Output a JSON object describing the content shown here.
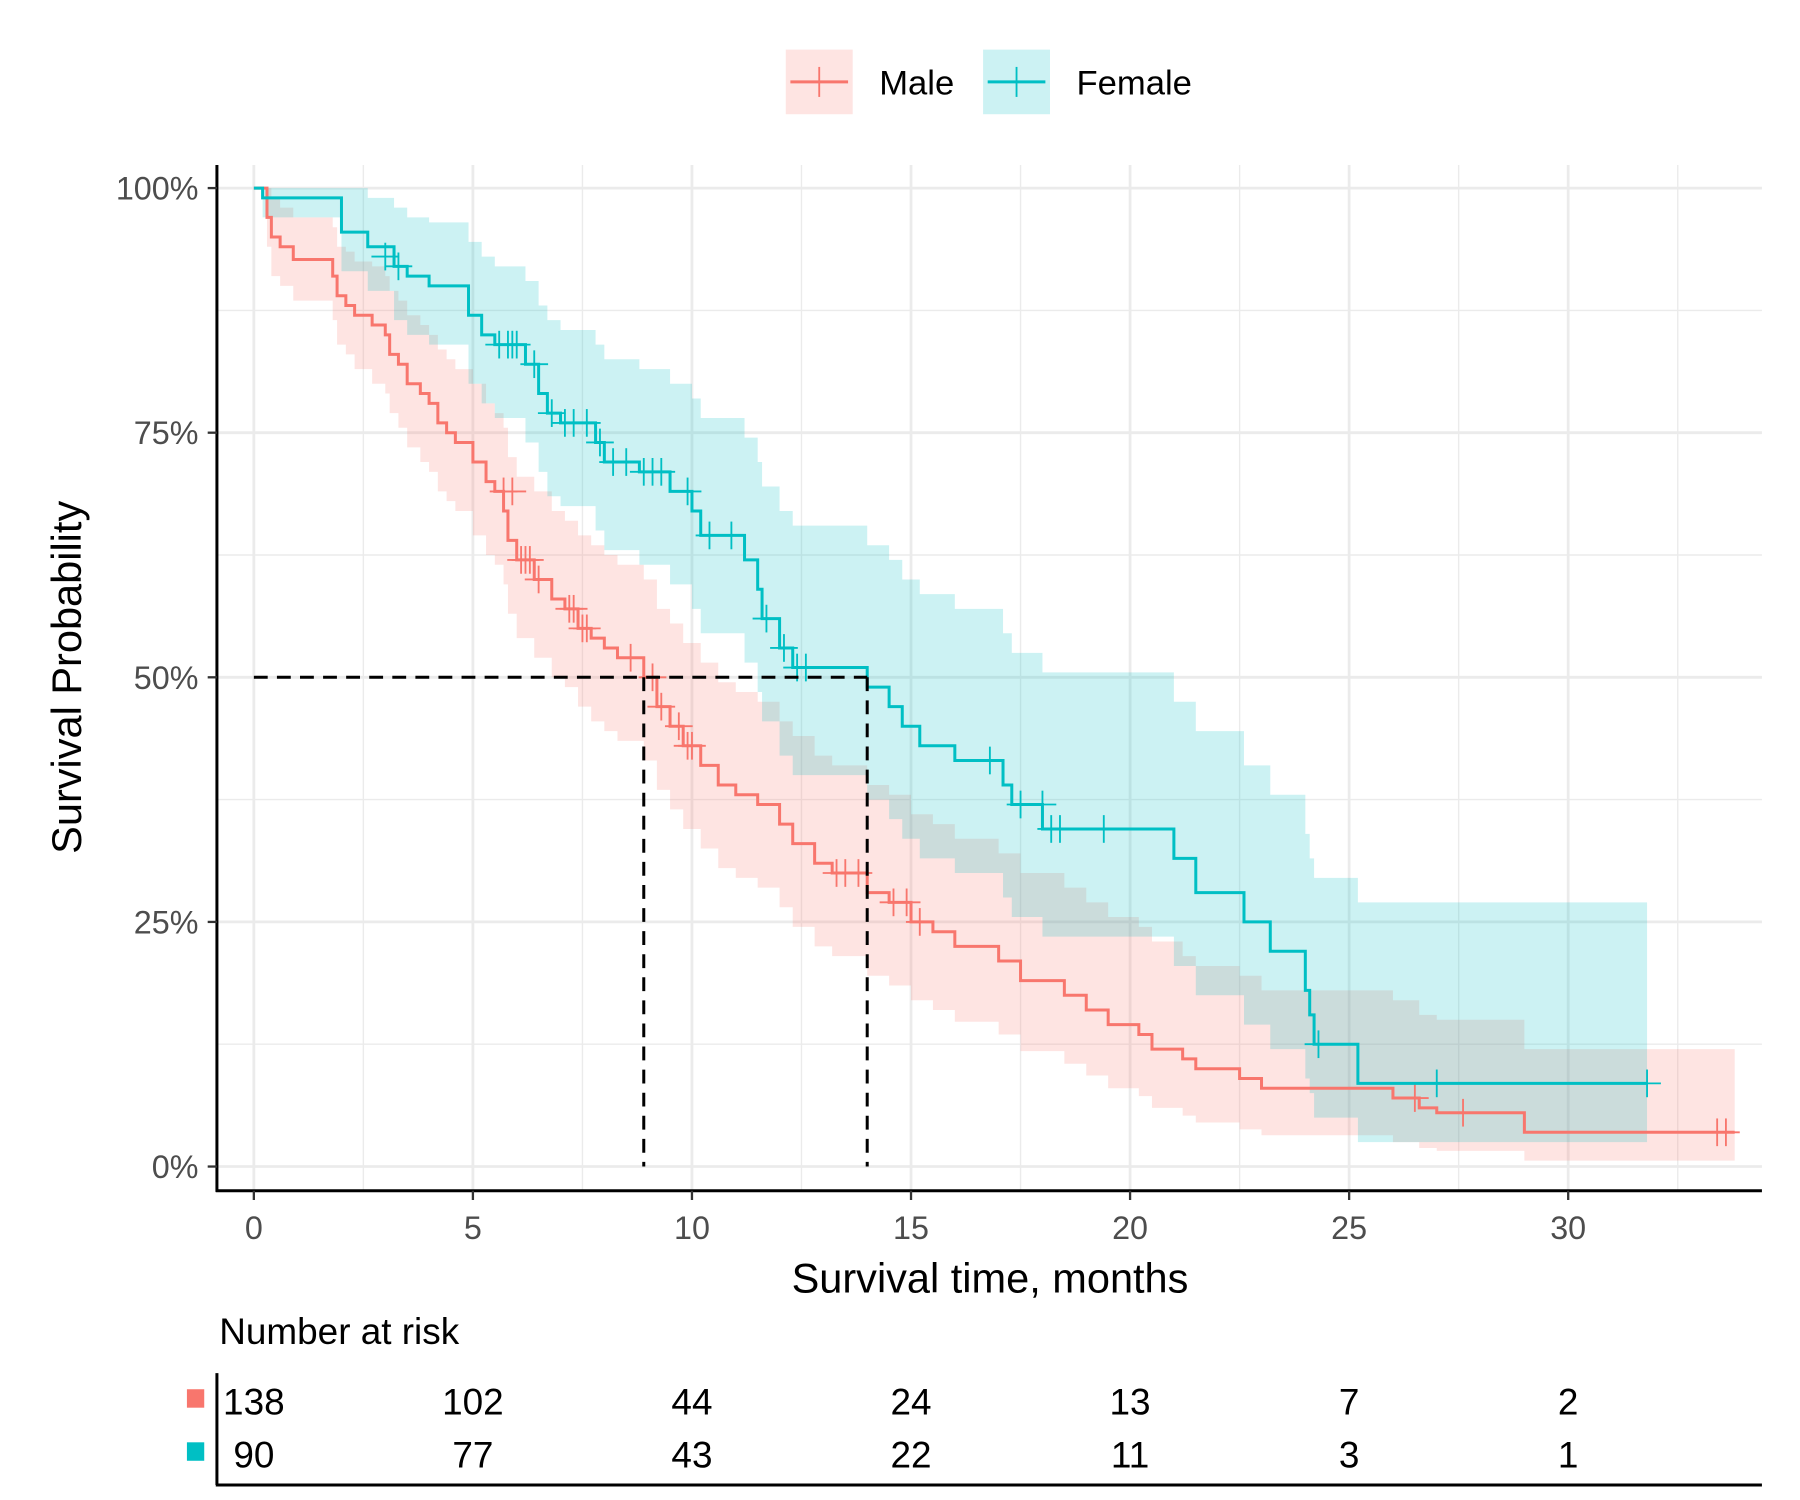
{
  "chart_data": {
    "type": "line",
    "subtype": "kaplan-meier step curves with confidence bands",
    "xlabel": "Survival time, months",
    "ylabel": "Survival Probability",
    "xlim": [
      0,
      34
    ],
    "ylim": [
      0,
      1
    ],
    "x_ticks": [
      0,
      5,
      10,
      15,
      20,
      25,
      30
    ],
    "y_ticks": [
      0,
      0.25,
      0.5,
      0.75,
      1
    ],
    "y_tick_labels": [
      "0%",
      "25%",
      "50%",
      "75%",
      "100%"
    ],
    "grid": true,
    "legend_position": "top",
    "median_lines": [
      8.9,
      14.0
    ],
    "series": [
      {
        "name": "Male",
        "color": "#F8766D",
        "end_time": 33.8,
        "steps": [
          [
            0,
            1,
            1,
            1
          ],
          [
            0.3,
            0.97,
            0.94,
            1
          ],
          [
            0.4,
            0.95,
            0.91,
            0.99
          ],
          [
            0.6,
            0.94,
            0.9,
            0.98
          ],
          [
            0.9,
            0.927,
            0.885,
            0.97
          ],
          [
            1.8,
            0.91,
            0.865,
            0.96
          ],
          [
            1.9,
            0.89,
            0.84,
            0.94
          ],
          [
            2.1,
            0.88,
            0.83,
            0.935
          ],
          [
            2.3,
            0.87,
            0.815,
            0.925
          ],
          [
            2.7,
            0.86,
            0.8,
            0.92
          ],
          [
            3.0,
            0.85,
            0.79,
            0.91
          ],
          [
            3.1,
            0.83,
            0.77,
            0.895
          ],
          [
            3.3,
            0.82,
            0.755,
            0.885
          ],
          [
            3.5,
            0.8,
            0.735,
            0.87
          ],
          [
            3.8,
            0.79,
            0.72,
            0.86
          ],
          [
            4.0,
            0.78,
            0.71,
            0.85
          ],
          [
            4.2,
            0.76,
            0.69,
            0.835
          ],
          [
            4.4,
            0.75,
            0.68,
            0.825
          ],
          [
            4.6,
            0.74,
            0.67,
            0.815
          ],
          [
            5.0,
            0.72,
            0.645,
            0.8
          ],
          [
            5.3,
            0.7,
            0.625,
            0.78
          ],
          [
            5.5,
            0.69,
            0.615,
            0.77
          ],
          [
            5.7,
            0.67,
            0.595,
            0.755
          ],
          [
            5.8,
            0.64,
            0.565,
            0.725
          ],
          [
            6.0,
            0.62,
            0.54,
            0.705
          ],
          [
            6.4,
            0.6,
            0.52,
            0.69
          ],
          [
            6.8,
            0.58,
            0.5,
            0.67
          ],
          [
            7.1,
            0.57,
            0.49,
            0.66
          ],
          [
            7.4,
            0.55,
            0.47,
            0.645
          ],
          [
            7.7,
            0.54,
            0.455,
            0.635
          ],
          [
            8.0,
            0.53,
            0.445,
            0.625
          ],
          [
            8.3,
            0.52,
            0.435,
            0.615
          ],
          [
            8.9,
            0.5,
            0.415,
            0.6
          ],
          [
            9.2,
            0.47,
            0.385,
            0.57
          ],
          [
            9.5,
            0.45,
            0.365,
            0.555
          ],
          [
            9.8,
            0.43,
            0.345,
            0.535
          ],
          [
            10.2,
            0.41,
            0.325,
            0.515
          ],
          [
            10.6,
            0.39,
            0.305,
            0.495
          ],
          [
            11.0,
            0.38,
            0.295,
            0.485
          ],
          [
            11.5,
            0.37,
            0.285,
            0.475
          ],
          [
            12.0,
            0.35,
            0.265,
            0.455
          ],
          [
            12.3,
            0.33,
            0.245,
            0.44
          ],
          [
            12.8,
            0.31,
            0.225,
            0.42
          ],
          [
            13.2,
            0.3,
            0.215,
            0.41
          ],
          [
            14.0,
            0.28,
            0.195,
            0.39
          ],
          [
            14.5,
            0.27,
            0.185,
            0.38
          ],
          [
            15.0,
            0.25,
            0.17,
            0.36
          ],
          [
            15.5,
            0.24,
            0.16,
            0.35
          ],
          [
            16.0,
            0.225,
            0.148,
            0.335
          ],
          [
            17.0,
            0.21,
            0.135,
            0.32
          ],
          [
            17.5,
            0.19,
            0.118,
            0.3
          ],
          [
            18.5,
            0.175,
            0.105,
            0.285
          ],
          [
            19.0,
            0.16,
            0.093,
            0.27
          ],
          [
            19.5,
            0.145,
            0.08,
            0.255
          ],
          [
            20.2,
            0.135,
            0.072,
            0.245
          ],
          [
            20.5,
            0.12,
            0.06,
            0.23
          ],
          [
            21.2,
            0.11,
            0.052,
            0.215
          ],
          [
            21.5,
            0.1,
            0.045,
            0.205
          ],
          [
            22.5,
            0.09,
            0.038,
            0.195
          ],
          [
            23.0,
            0.08,
            0.032,
            0.18
          ],
          [
            26.0,
            0.07,
            0.025,
            0.17
          ],
          [
            26.6,
            0.06,
            0.019,
            0.155
          ],
          [
            27.0,
            0.055,
            0.016,
            0.15
          ],
          [
            29.0,
            0.035,
            0.006,
            0.12
          ]
        ],
        "censored": [
          [
            5.7,
            0.69
          ],
          [
            5.9,
            0.69
          ],
          [
            6.1,
            0.62
          ],
          [
            6.2,
            0.62
          ],
          [
            6.3,
            0.62
          ],
          [
            6.5,
            0.6
          ],
          [
            7.2,
            0.57
          ],
          [
            7.3,
            0.57
          ],
          [
            7.5,
            0.55
          ],
          [
            7.6,
            0.55
          ],
          [
            8.6,
            0.52
          ],
          [
            9.1,
            0.5
          ],
          [
            9.3,
            0.47
          ],
          [
            9.7,
            0.45
          ],
          [
            9.9,
            0.43
          ],
          [
            10.0,
            0.43
          ],
          [
            13.3,
            0.3
          ],
          [
            13.5,
            0.3
          ],
          [
            13.8,
            0.3
          ],
          [
            14.6,
            0.27
          ],
          [
            14.9,
            0.27
          ],
          [
            15.2,
            0.25
          ],
          [
            26.5,
            0.07
          ],
          [
            27.6,
            0.055
          ],
          [
            33.4,
            0.035
          ],
          [
            33.6,
            0.035
          ]
        ]
      },
      {
        "name": "Female",
        "color": "#00BFC4",
        "end_time": 31.8,
        "steps": [
          [
            0,
            1,
            1,
            1
          ],
          [
            0.2,
            0.99,
            0.97,
            1
          ],
          [
            2.0,
            0.955,
            0.915,
            1
          ],
          [
            2.6,
            0.94,
            0.895,
            0.99
          ],
          [
            3.2,
            0.92,
            0.865,
            0.98
          ],
          [
            3.5,
            0.91,
            0.85,
            0.97
          ],
          [
            4.0,
            0.9,
            0.84,
            0.965
          ],
          [
            4.9,
            0.87,
            0.8,
            0.945
          ],
          [
            5.2,
            0.85,
            0.78,
            0.93
          ],
          [
            5.5,
            0.84,
            0.765,
            0.92
          ],
          [
            6.2,
            0.82,
            0.74,
            0.905
          ],
          [
            6.5,
            0.79,
            0.71,
            0.88
          ],
          [
            6.7,
            0.77,
            0.685,
            0.865
          ],
          [
            7.0,
            0.76,
            0.675,
            0.855
          ],
          [
            7.8,
            0.74,
            0.65,
            0.84
          ],
          [
            8.0,
            0.72,
            0.63,
            0.825
          ],
          [
            8.8,
            0.71,
            0.615,
            0.815
          ],
          [
            9.5,
            0.69,
            0.595,
            0.8
          ],
          [
            10.0,
            0.67,
            0.57,
            0.785
          ],
          [
            10.2,
            0.645,
            0.545,
            0.765
          ],
          [
            11.2,
            0.62,
            0.515,
            0.745
          ],
          [
            11.5,
            0.59,
            0.485,
            0.72
          ],
          [
            11.6,
            0.56,
            0.455,
            0.695
          ],
          [
            12.0,
            0.53,
            0.42,
            0.67
          ],
          [
            12.3,
            0.51,
            0.4,
            0.655
          ],
          [
            14.0,
            0.49,
            0.375,
            0.635
          ],
          [
            14.5,
            0.47,
            0.355,
            0.62
          ],
          [
            14.8,
            0.45,
            0.335,
            0.6
          ],
          [
            15.2,
            0.43,
            0.315,
            0.585
          ],
          [
            16.0,
            0.415,
            0.3,
            0.57
          ],
          [
            17.1,
            0.39,
            0.275,
            0.545
          ],
          [
            17.3,
            0.37,
            0.255,
            0.525
          ],
          [
            18.0,
            0.345,
            0.235,
            0.505
          ],
          [
            21.0,
            0.315,
            0.205,
            0.475
          ],
          [
            21.5,
            0.28,
            0.175,
            0.445
          ],
          [
            22.6,
            0.25,
            0.145,
            0.41
          ],
          [
            23.2,
            0.22,
            0.12,
            0.38
          ],
          [
            24.0,
            0.18,
            0.09,
            0.34
          ],
          [
            24.1,
            0.155,
            0.075,
            0.315
          ],
          [
            24.2,
            0.125,
            0.05,
            0.295
          ],
          [
            25.2,
            0.085,
            0.025,
            0.27
          ]
        ],
        "censored": [
          [
            3.0,
            0.93
          ],
          [
            3.3,
            0.92
          ],
          [
            5.6,
            0.84
          ],
          [
            5.8,
            0.84
          ],
          [
            5.9,
            0.84
          ],
          [
            6.0,
            0.84
          ],
          [
            6.4,
            0.82
          ],
          [
            6.8,
            0.77
          ],
          [
            7.1,
            0.76
          ],
          [
            7.3,
            0.76
          ],
          [
            7.6,
            0.76
          ],
          [
            7.9,
            0.74
          ],
          [
            8.2,
            0.72
          ],
          [
            8.5,
            0.72
          ],
          [
            8.9,
            0.71
          ],
          [
            9.1,
            0.71
          ],
          [
            9.3,
            0.71
          ],
          [
            9.9,
            0.69
          ],
          [
            10.4,
            0.645
          ],
          [
            10.9,
            0.645
          ],
          [
            11.7,
            0.56
          ],
          [
            12.1,
            0.53
          ],
          [
            12.4,
            0.51
          ],
          [
            12.6,
            0.51
          ],
          [
            16.8,
            0.415
          ],
          [
            17.5,
            0.37
          ],
          [
            18.0,
            0.37
          ],
          [
            18.2,
            0.345
          ],
          [
            18.4,
            0.345
          ],
          [
            19.4,
            0.345
          ],
          [
            24.3,
            0.125
          ],
          [
            27.0,
            0.085
          ],
          [
            31.8,
            0.085
          ]
        ]
      }
    ],
    "risk_table": {
      "title": "Number at risk",
      "times": [
        0,
        5,
        10,
        15,
        20,
        25,
        30
      ],
      "rows": [
        {
          "name": "Male",
          "color": "#F8766D",
          "values": [
            "138",
            "102",
            "44",
            "24",
            "13",
            "7",
            "2"
          ]
        },
        {
          "name": "Female",
          "color": "#00BFC4",
          "values": [
            "90",
            "77",
            "43",
            "22",
            "11",
            "3",
            "1"
          ]
        }
      ]
    }
  }
}
